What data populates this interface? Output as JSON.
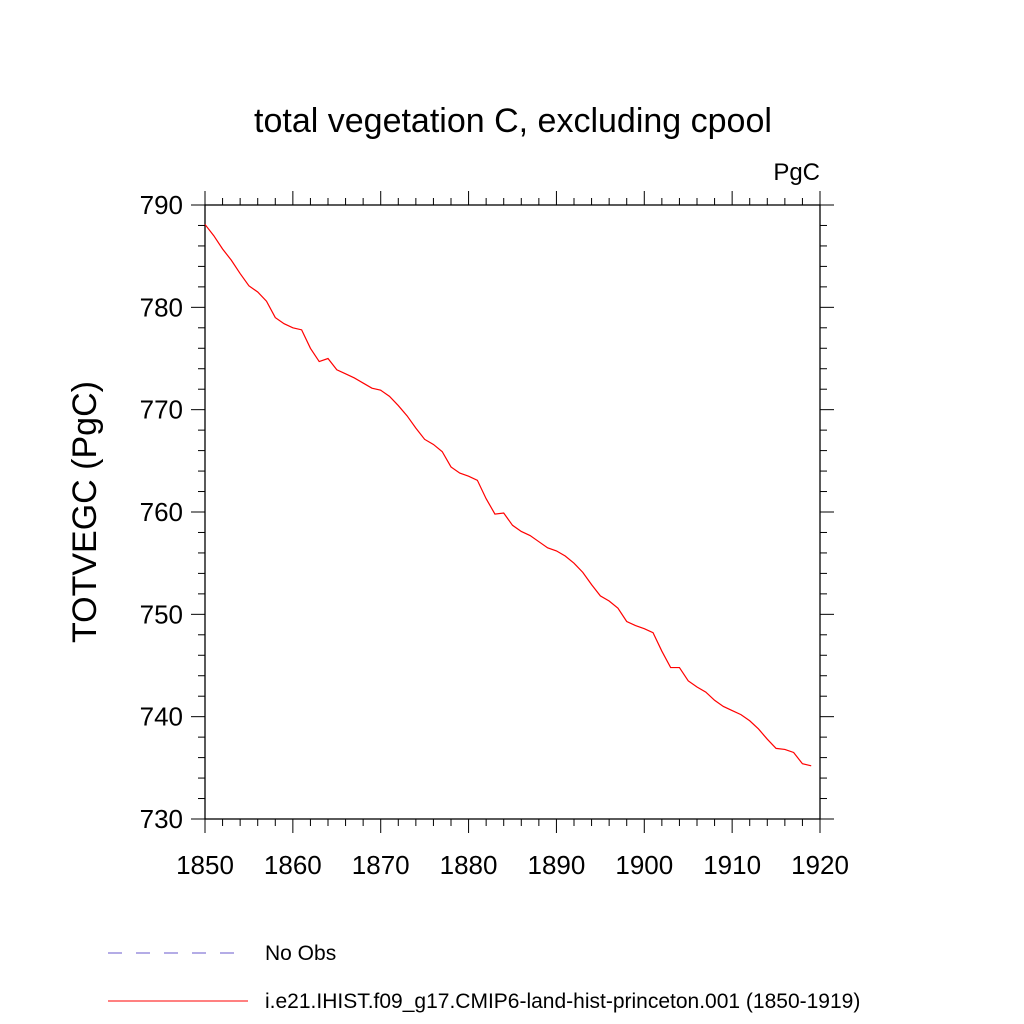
{
  "chart_data": {
    "type": "line",
    "title": "total vegetation C, excluding cpool",
    "units_label": "PgC",
    "xlabel": "",
    "ylabel": "TOTVEGC  (PgC)",
    "xlim": [
      1850,
      1920
    ],
    "ylim": [
      730,
      790
    ],
    "x_ticks": [
      1850,
      1860,
      1870,
      1880,
      1890,
      1900,
      1910,
      1920
    ],
    "y_ticks": [
      730,
      740,
      750,
      760,
      770,
      780,
      790
    ],
    "grid": false,
    "legend_placement": "bottom",
    "legend": [
      {
        "label": "No Obs",
        "style": "dashed",
        "color": "#6a5acd"
      },
      {
        "label": "i.e21.IHIST.f09_g17.CMIP6-land-hist-princeton.001 (1850-1919)",
        "style": "solid",
        "color": "#ff0000"
      }
    ],
    "series": [
      {
        "color": "#ff0000",
        "x": [
          1850,
          1851,
          1852,
          1853,
          1854,
          1855,
          1856,
          1857,
          1858,
          1859,
          1860,
          1861,
          1862,
          1863,
          1864,
          1865,
          1866,
          1867,
          1868,
          1869,
          1870,
          1871,
          1872,
          1873,
          1874,
          1875,
          1876,
          1877,
          1878,
          1879,
          1880,
          1881,
          1882,
          1883,
          1884,
          1885,
          1886,
          1887,
          1888,
          1889,
          1890,
          1891,
          1892,
          1893,
          1894,
          1895,
          1896,
          1897,
          1898,
          1899,
          1900,
          1901,
          1902,
          1903,
          1904,
          1905,
          1906,
          1907,
          1908,
          1909,
          1910,
          1911,
          1912,
          1913,
          1914,
          1915,
          1916,
          1917,
          1918,
          1919
        ],
        "y": [
          788.1,
          787.0,
          785.7,
          784.6,
          783.3,
          782.1,
          781.5,
          780.6,
          779.0,
          778.4,
          778.0,
          777.8,
          776.0,
          774.7,
          775.0,
          773.9,
          773.5,
          773.1,
          772.6,
          772.1,
          771.9,
          771.3,
          770.4,
          769.4,
          768.2,
          767.1,
          766.6,
          765.9,
          764.4,
          763.8,
          763.5,
          763.1,
          761.3,
          759.8,
          759.9,
          758.7,
          758.1,
          757.7,
          757.1,
          756.5,
          756.2,
          755.7,
          755.0,
          754.1,
          752.9,
          751.8,
          751.3,
          750.6,
          749.3,
          748.9,
          748.6,
          748.2,
          746.4,
          744.8,
          744.8,
          743.5,
          742.9,
          742.4,
          741.6,
          741.0,
          740.6,
          740.2,
          739.6,
          738.8,
          737.8,
          736.9,
          736.8,
          736.5,
          735.4,
          735.2
        ]
      }
    ]
  }
}
